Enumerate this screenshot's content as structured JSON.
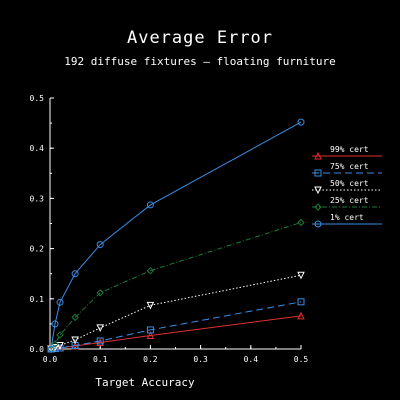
{
  "chart_data": {
    "type": "line",
    "title": "Average Error",
    "subtitle": "192 diffuse fixtures — floating furniture",
    "xlabel": "Target Accuracy",
    "ylabel": "",
    "xlim": [
      0,
      0.5
    ],
    "ylim": [
      0,
      0.5
    ],
    "xticks": [
      "0.0",
      "0.1",
      "0.2",
      "0.3",
      "0.4",
      "0.5"
    ],
    "yticks": [
      "0.0",
      "0.1",
      "0.2",
      "0.3",
      "0.4",
      "0.5"
    ],
    "grid": false,
    "legend_position": "right",
    "x": [
      0.002,
      0.01,
      0.02,
      0.05,
      0.1,
      0.2,
      0.5
    ],
    "series": [
      {
        "name": "99% cert",
        "color": "#e03030",
        "dash": "solid",
        "marker": "triangle-up",
        "values": [
          0.0,
          0.001,
          0.002,
          0.006,
          0.013,
          0.027,
          0.066
        ]
      },
      {
        "name": "75% cert",
        "color": "#3a8ee6",
        "dash": "long-dash",
        "marker": "square",
        "values": [
          0.0,
          0.001,
          0.002,
          0.007,
          0.016,
          0.038,
          0.094
        ]
      },
      {
        "name": "50% cert",
        "color": "#ffffff",
        "dash": "dotted",
        "marker": "triangle-down",
        "values": [
          0.0,
          0.003,
          0.007,
          0.018,
          0.042,
          0.087,
          0.147
        ]
      },
      {
        "name": "25% cert",
        "color": "#1e7a3a",
        "dash": "dash-dot",
        "marker": "diamond",
        "values": [
          0.0,
          0.01,
          0.028,
          0.063,
          0.112,
          0.156,
          0.252
        ]
      },
      {
        "name": "1% cert",
        "color": "#3a8ee6",
        "dash": "solid",
        "marker": "circle",
        "values": [
          0.0,
          0.05,
          0.093,
          0.15,
          0.208,
          0.287,
          0.452
        ]
      }
    ]
  }
}
